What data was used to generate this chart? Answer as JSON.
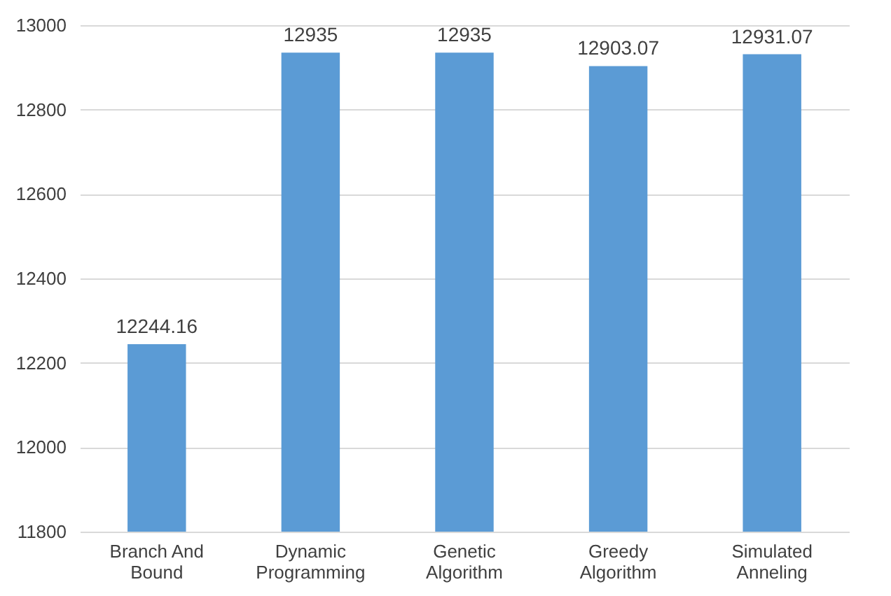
{
  "chart_data": {
    "type": "bar",
    "categories": [
      "Branch And Bound",
      "Dynamic Programming",
      "Genetic Algorithm",
      "Greedy Algorithm",
      "Simulated Anneling"
    ],
    "values": [
      12244.16,
      12935,
      12935,
      12903.07,
      12931.07
    ],
    "color": "#5b9bd5",
    "ylim": [
      11800,
      13000
    ],
    "yticks": [
      11800,
      12000,
      12200,
      12400,
      12600,
      12800,
      13000
    ],
    "grid": "y",
    "data_labels": true
  }
}
